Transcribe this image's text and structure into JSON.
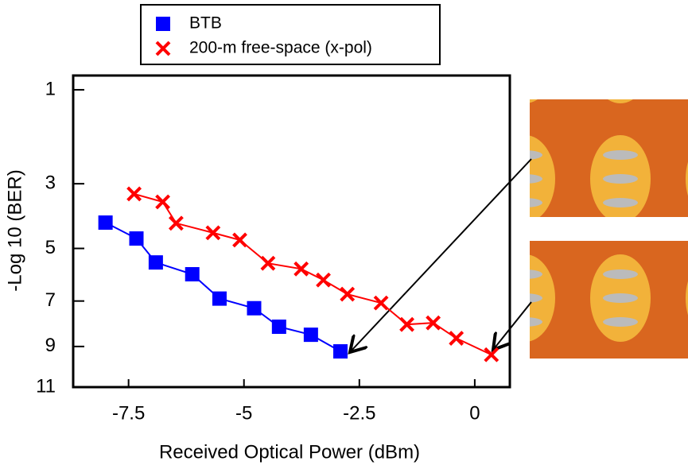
{
  "chart_data": {
    "type": "line",
    "xlabel": "Received  Optical  Power  (dBm)",
    "ylabel": "-Log 10 (BER)",
    "xlim": [
      -8.7,
      0.76
    ],
    "xticks": [
      -7.5,
      -5,
      -2.5,
      0
    ],
    "ylim": [
      0.79,
      11
    ],
    "yticks": [
      1,
      3,
      5,
      7,
      9,
      11
    ],
    "yscale": "sqrt",
    "yinverted": true,
    "series": [
      {
        "name": "BTB",
        "color": "#0000ff",
        "marker": "square",
        "x": [
          -8.0,
          -7.33,
          -6.91,
          -6.12,
          -5.53,
          -4.78,
          -4.24,
          -3.55,
          -2.91
        ],
        "values": [
          4.14,
          4.66,
          5.5,
          5.94,
          6.9,
          7.3,
          8.1,
          8.46,
          9.23
        ]
      },
      {
        "name": "200-m free-space (x-pol)",
        "color": "#ff0000",
        "marker": "x",
        "x": [
          -7.38,
          -6.76,
          -6.47,
          -5.67,
          -5.09,
          -4.48,
          -3.76,
          -3.28,
          -2.76,
          -2.03,
          -1.47,
          -0.9,
          -0.4,
          0.36
        ],
        "values": [
          3.28,
          3.51,
          4.16,
          4.47,
          4.71,
          5.53,
          5.74,
          6.16,
          6.72,
          7.08,
          8.0,
          7.93,
          8.62,
          9.39
        ]
      }
    ]
  }
}
